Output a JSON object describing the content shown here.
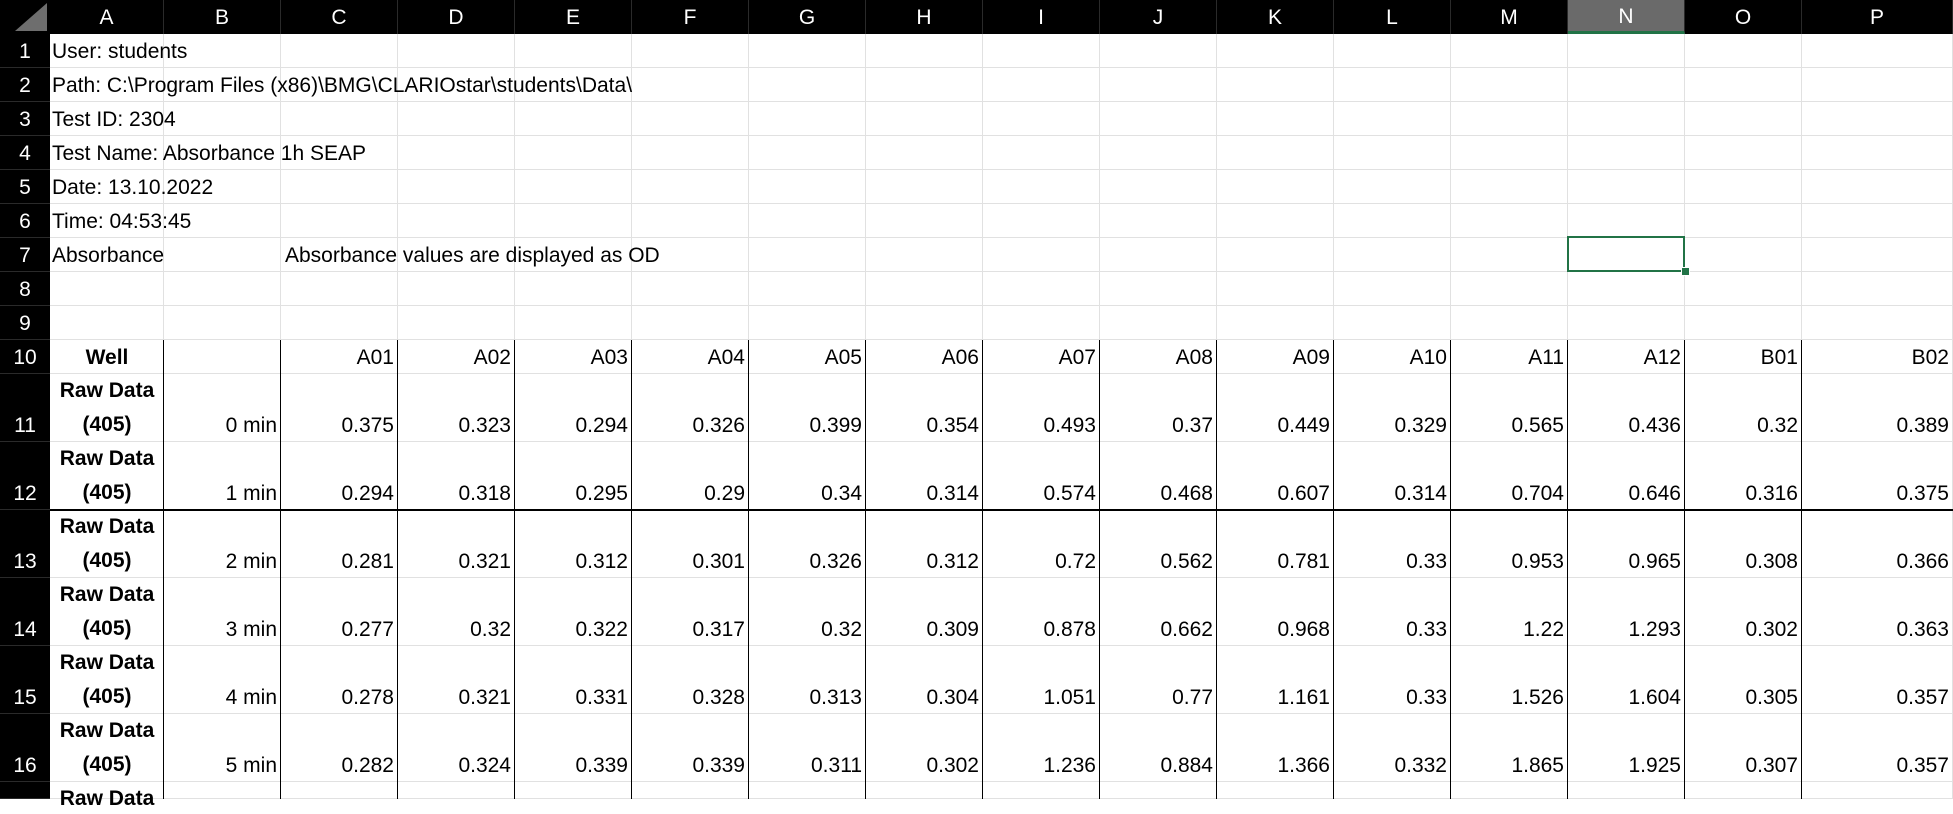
{
  "columns": [
    "A",
    "B",
    "C",
    "D",
    "E",
    "F",
    "G",
    "H",
    "I",
    "J",
    "K",
    "L",
    "M",
    "N",
    "O",
    "P"
  ],
  "selected_column": "N",
  "rows": [
    "1",
    "2",
    "3",
    "4",
    "5",
    "6",
    "7",
    "8",
    "9",
    "10",
    "11",
    "12",
    "13",
    "14",
    "15",
    "16",
    ""
  ],
  "header_lines": {
    "r1": "User: students",
    "r2": "Path: C:\\Program Files (x86)\\BMG\\CLARIOstar\\students\\Data\\",
    "r3": "Test ID: 2304",
    "r4": "Test Name: Absorbance 1h SEAP",
    "r5": "Date: 13.10.2022",
    "r6": "Time: 04:53:45",
    "r7a": "Absorbance",
    "r7d": "Absorbance values are displayed as OD"
  },
  "table": {
    "well_label": "Well",
    "wells": [
      "A01",
      "A02",
      "A03",
      "A04",
      "A05",
      "A06",
      "A07",
      "A08",
      "A09",
      "A10",
      "A11",
      "A12",
      "B01",
      "B02"
    ],
    "raw_label_1": "Raw Data",
    "raw_label_2": "(405)",
    "data_rows": [
      {
        "time": "0 min",
        "values": [
          "0.375",
          "0.323",
          "0.294",
          "0.326",
          "0.399",
          "0.354",
          "0.493",
          "0.37",
          "0.449",
          "0.329",
          "0.565",
          "0.436",
          "0.32",
          "0.389"
        ]
      },
      {
        "time": "1 min",
        "values": [
          "0.294",
          "0.318",
          "0.295",
          "0.29",
          "0.34",
          "0.314",
          "0.574",
          "0.468",
          "0.607",
          "0.314",
          "0.704",
          "0.646",
          "0.316",
          "0.375"
        ]
      },
      {
        "time": "2 min",
        "values": [
          "0.281",
          "0.321",
          "0.312",
          "0.301",
          "0.326",
          "0.312",
          "0.72",
          "0.562",
          "0.781",
          "0.33",
          "0.953",
          "0.965",
          "0.308",
          "0.366"
        ]
      },
      {
        "time": "3 min",
        "values": [
          "0.277",
          "0.32",
          "0.322",
          "0.317",
          "0.32",
          "0.309",
          "0.878",
          "0.662",
          "0.968",
          "0.33",
          "1.22",
          "1.293",
          "0.302",
          "0.363"
        ]
      },
      {
        "time": "4 min",
        "values": [
          "0.278",
          "0.321",
          "0.331",
          "0.328",
          "0.313",
          "0.304",
          "1.051",
          "0.77",
          "1.161",
          "0.33",
          "1.526",
          "1.604",
          "0.305",
          "0.357"
        ]
      },
      {
        "time": "5 min",
        "values": [
          "0.282",
          "0.324",
          "0.339",
          "0.339",
          "0.311",
          "0.302",
          "1.236",
          "0.884",
          "1.366",
          "0.332",
          "1.865",
          "1.925",
          "0.307",
          "0.357"
        ]
      }
    ],
    "partial_row_label": "Raw Data"
  }
}
